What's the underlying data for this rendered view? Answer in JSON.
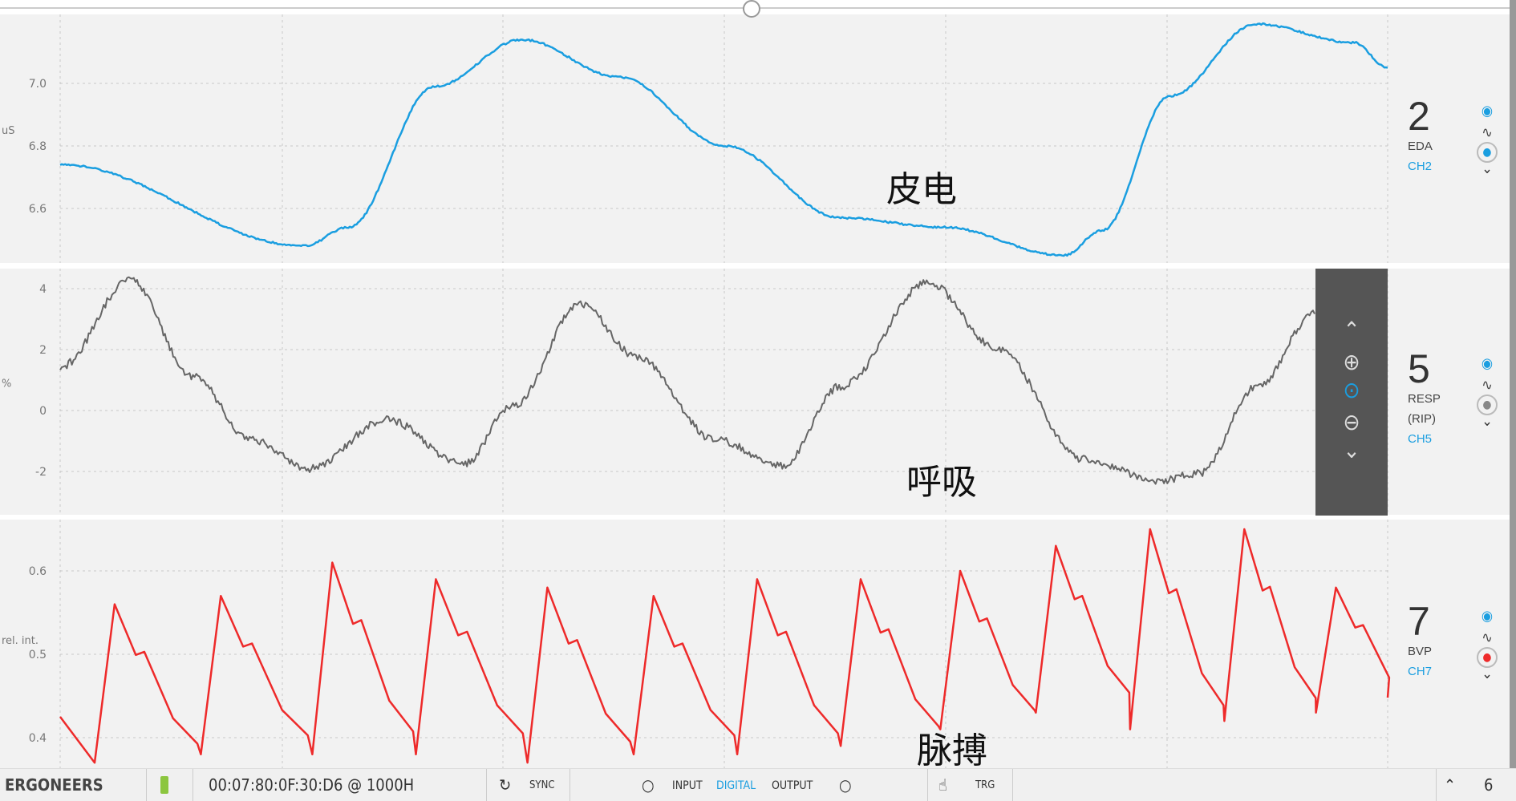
{
  "chart_data": [
    {
      "type": "line",
      "channel": "EDA",
      "ylabel": "uS",
      "yticks": [
        7.0,
        6.8,
        6.6
      ],
      "ylim": [
        6.42,
        7.25
      ],
      "color": "#1a9ee0",
      "grid": true,
      "x": [
        0,
        18.4,
        21.7,
        28.2,
        34.8,
        42.1,
        50.1,
        58.8,
        66.5,
        75.6,
        78.5,
        83.6,
        90.1,
        97.5,
        100
      ],
      "y": [
        6.74,
        6.48,
        6.54,
        6.99,
        7.14,
        7.02,
        6.8,
        6.57,
        6.54,
        6.45,
        6.53,
        6.96,
        7.19,
        7.13,
        7.05
      ]
    },
    {
      "type": "line",
      "channel": "RESP (RIP)",
      "ylabel": "%",
      "yticks": [
        4,
        2,
        0,
        -2
      ],
      "ylim": [
        -2.9,
        4.6
      ],
      "color": "#666666",
      "grid": true,
      "x": [
        0,
        5.3,
        10.0,
        14.4,
        18.8,
        24.6,
        30.4,
        34.1,
        39.2,
        43.5,
        49.3,
        54.4,
        58.8,
        65.4,
        70.5,
        77.1,
        82.9,
        85.8,
        90.2,
        94.5
      ],
      "y": [
        1.43,
        4.29,
        1.1,
        -0.95,
        -1.9,
        -0.3,
        -1.75,
        0.16,
        3.5,
        1.75,
        -0.95,
        -1.8,
        0.8,
        4.2,
        2.06,
        -1.6,
        -2.3,
        -2.06,
        0.8,
        3.17
      ]
    },
    {
      "type": "line",
      "channel": "BVP",
      "ylabel": "rel. int.",
      "yticks": [
        0.6,
        0.5,
        0.4
      ],
      "ylim": [
        0.36,
        0.66
      ],
      "color": "#ee2a2a",
      "grid": true,
      "beats_x": [
        4.1,
        12.1,
        20.5,
        28.3,
        36.7,
        44.7,
        52.5,
        60.3,
        67.8,
        75.0,
        82.1,
        89.2,
        96.1
      ],
      "beats_peak": [
        0.56,
        0.57,
        0.61,
        0.59,
        0.58,
        0.57,
        0.59,
        0.59,
        0.6,
        0.63,
        0.65,
        0.65,
        0.58
      ],
      "beats_trough": [
        0.37,
        0.38,
        0.38,
        0.38,
        0.37,
        0.38,
        0.38,
        0.39,
        0.41,
        0.43,
        0.41,
        0.42,
        0.43
      ]
    }
  ],
  "channels": [
    {
      "num": "2",
      "name": "EDA",
      "name2": "",
      "id": "CH2",
      "record_color": "#1a9ee0"
    },
    {
      "num": "5",
      "name": "RESP",
      "name2": "(RIP)",
      "id": "CH5",
      "record_color": "#888888"
    },
    {
      "num": "7",
      "name": "BVP",
      "name2": "",
      "id": "CH7",
      "record_color": "#ee2a2a"
    }
  ],
  "annotations": [
    "皮电",
    "呼吸",
    "脉搏"
  ],
  "status": {
    "brand": "ERGONEERS",
    "device": "00:07:80:0F:30:D6 @ 1000H",
    "sync": "SYNC",
    "input": "INPUT",
    "digital": "DIGITAL",
    "output": "OUTPUT",
    "trg": "TRG",
    "page": "6"
  }
}
